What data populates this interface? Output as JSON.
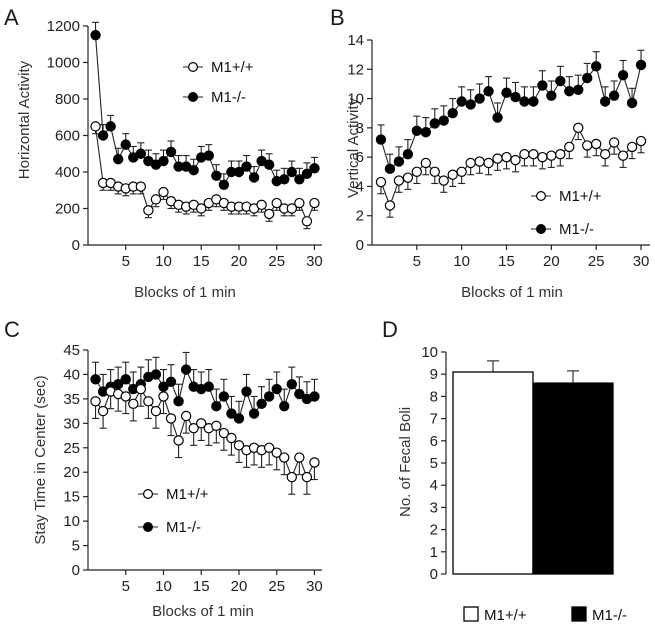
{
  "chart_data": [
    {
      "panel": "A",
      "type": "line",
      "xlabel": "Blocks of 1 min",
      "ylabel": "Horizontal Activity",
      "xlim": [
        0,
        31
      ],
      "ylim": [
        0,
        1200
      ],
      "xticks": [
        5,
        10,
        15,
        20,
        25,
        30
      ],
      "yticks": [
        0,
        200,
        400,
        600,
        800,
        1000,
        1200
      ],
      "legend": "top-right",
      "series": [
        {
          "name": "M1+/+",
          "marker": "open-circle",
          "x": [
            1,
            2,
            3,
            4,
            5,
            6,
            7,
            8,
            9,
            10,
            11,
            12,
            13,
            14,
            15,
            16,
            17,
            18,
            19,
            20,
            21,
            22,
            23,
            24,
            25,
            26,
            27,
            28,
            29,
            30
          ],
          "values": [
            650,
            340,
            340,
            320,
            310,
            320,
            320,
            190,
            250,
            290,
            240,
            220,
            210,
            220,
            200,
            230,
            250,
            230,
            210,
            210,
            210,
            200,
            220,
            170,
            230,
            200,
            200,
            230,
            130,
            230
          ],
          "err": [
            40,
            40,
            40,
            40,
            40,
            40,
            40,
            40,
            40,
            40,
            40,
            40,
            40,
            40,
            40,
            40,
            40,
            40,
            40,
            40,
            40,
            40,
            40,
            40,
            40,
            40,
            40,
            40,
            40,
            40
          ]
        },
        {
          "name": "M1-/-",
          "marker": "filled-circle",
          "x": [
            1,
            2,
            3,
            4,
            5,
            6,
            7,
            8,
            9,
            10,
            11,
            12,
            13,
            14,
            15,
            16,
            17,
            18,
            19,
            20,
            21,
            22,
            23,
            24,
            25,
            26,
            27,
            28,
            29,
            30
          ],
          "values": [
            1150,
            600,
            650,
            470,
            550,
            480,
            500,
            460,
            440,
            460,
            510,
            430,
            430,
            410,
            480,
            490,
            380,
            330,
            400,
            400,
            430,
            370,
            460,
            440,
            350,
            360,
            400,
            360,
            390,
            420
          ],
          "err": [
            70,
            60,
            60,
            60,
            60,
            60,
            60,
            60,
            60,
            60,
            60,
            60,
            60,
            60,
            60,
            60,
            60,
            60,
            60,
            60,
            60,
            60,
            60,
            60,
            60,
            60,
            60,
            60,
            60,
            60
          ]
        }
      ]
    },
    {
      "panel": "B",
      "type": "line",
      "xlabel": "Blocks of 1 min",
      "ylabel": "Vertical Activity",
      "xlim": [
        0,
        31
      ],
      "ylim": [
        0,
        14
      ],
      "xticks": [
        5,
        10,
        15,
        20,
        25,
        30
      ],
      "yticks": [
        0,
        2,
        4,
        6,
        8,
        10,
        12,
        14
      ],
      "legend": "bottom-right",
      "series": [
        {
          "name": "M1+/+",
          "marker": "open-circle",
          "x": [
            1,
            2,
            3,
            4,
            5,
            6,
            7,
            8,
            9,
            10,
            11,
            12,
            13,
            14,
            15,
            16,
            17,
            18,
            19,
            20,
            21,
            22,
            23,
            24,
            25,
            26,
            27,
            28,
            29,
            30
          ],
          "values": [
            4.3,
            2.7,
            4.4,
            4.6,
            5.0,
            5.6,
            5.0,
            4.4,
            4.8,
            5.0,
            5.6,
            5.7,
            5.6,
            5.9,
            6.0,
            5.8,
            6.2,
            6.2,
            6.0,
            6.1,
            6.2,
            6.7,
            8.0,
            6.8,
            6.9,
            6.2,
            7.0,
            6.1,
            6.7,
            7.1
          ],
          "err": [
            0.8,
            0.8,
            0.8,
            0.8,
            0.8,
            0.8,
            0.8,
            0.8,
            0.8,
            0.8,
            0.8,
            0.8,
            0.8,
            0.8,
            0.8,
            0.8,
            0.8,
            0.8,
            0.8,
            0.8,
            0.8,
            0.8,
            0.8,
            0.8,
            0.8,
            0.8,
            0.8,
            0.8,
            0.8,
            0.8
          ]
        },
        {
          "name": "M1-/-",
          "marker": "filled-circle",
          "x": [
            1,
            2,
            3,
            4,
            5,
            6,
            7,
            8,
            9,
            10,
            11,
            12,
            13,
            14,
            15,
            16,
            17,
            18,
            19,
            20,
            21,
            22,
            23,
            24,
            25,
            26,
            27,
            28,
            29,
            30
          ],
          "values": [
            7.2,
            5.2,
            5.7,
            6.2,
            7.8,
            7.7,
            8.3,
            8.5,
            9.0,
            9.8,
            9.6,
            10.0,
            10.5,
            8.7,
            10.4,
            10.1,
            9.8,
            9.8,
            10.9,
            10.2,
            11.2,
            10.5,
            10.6,
            11.4,
            12.2,
            9.8,
            10.2,
            11.6,
            9.7,
            12.3
          ],
          "err": [
            1.0,
            1.0,
            1.0,
            1.0,
            1.0,
            1.0,
            1.0,
            1.0,
            1.0,
            1.0,
            1.0,
            1.0,
            1.0,
            1.0,
            1.0,
            1.0,
            1.0,
            1.0,
            1.0,
            1.0,
            1.0,
            1.0,
            1.0,
            1.0,
            1.0,
            1.0,
            1.0,
            1.0,
            1.0,
            1.0
          ]
        }
      ]
    },
    {
      "panel": "C",
      "type": "line",
      "xlabel": "Blocks of 1 min",
      "ylabel": "Stay Time in Center (sec)",
      "xlim": [
        0,
        31
      ],
      "ylim": [
        0,
        45
      ],
      "xticks": [
        5,
        10,
        15,
        20,
        25,
        30
      ],
      "yticks": [
        0,
        5,
        10,
        15,
        20,
        25,
        30,
        35,
        40,
        45
      ],
      "legend": "bottom-left",
      "series": [
        {
          "name": "M1+/+",
          "marker": "open-circle",
          "x": [
            1,
            2,
            3,
            4,
            5,
            6,
            7,
            8,
            9,
            10,
            11,
            12,
            13,
            14,
            15,
            16,
            17,
            18,
            19,
            20,
            21,
            22,
            23,
            24,
            25,
            26,
            27,
            28,
            29,
            30
          ],
          "values": [
            34.5,
            32.5,
            36.5,
            36.0,
            35.5,
            34.0,
            37.0,
            34.5,
            32.5,
            35.5,
            31.0,
            26.5,
            31.5,
            29.0,
            30.0,
            29.0,
            29.5,
            28.0,
            27.0,
            25.5,
            24.5,
            25.0,
            24.5,
            25.0,
            24.0,
            23.0,
            19.0,
            23.0,
            19.0,
            22.0
          ],
          "err": [
            3.5,
            3.5,
            3.5,
            3.5,
            3.5,
            3.5,
            3.5,
            3.5,
            3.5,
            3.5,
            3.5,
            3.5,
            3.5,
            3.5,
            3.5,
            3.5,
            3.5,
            3.5,
            3.5,
            3.5,
            3.5,
            3.5,
            3.5,
            3.5,
            3.5,
            3.5,
            3.5,
            3.5,
            3.5,
            3.5
          ]
        },
        {
          "name": "M1-/-",
          "marker": "filled-circle",
          "x": [
            1,
            2,
            3,
            4,
            5,
            6,
            7,
            8,
            9,
            10,
            11,
            12,
            13,
            14,
            15,
            16,
            17,
            18,
            19,
            20,
            21,
            22,
            23,
            24,
            25,
            26,
            27,
            28,
            29,
            30
          ],
          "values": [
            39.0,
            36.5,
            37.5,
            38.0,
            39.0,
            37.0,
            38.0,
            39.5,
            40.0,
            37.5,
            38.5,
            34.5,
            41.0,
            37.5,
            37.0,
            37.5,
            33.5,
            35.5,
            32.0,
            31.0,
            36.5,
            32.0,
            34.0,
            35.5,
            37.0,
            33.5,
            38.0,
            36.0,
            35.0,
            35.5
          ],
          "err": [
            3.5,
            3.5,
            3.5,
            3.5,
            3.5,
            3.5,
            3.5,
            3.5,
            3.5,
            3.5,
            3.5,
            3.5,
            3.5,
            3.5,
            3.5,
            3.5,
            3.5,
            3.5,
            3.5,
            3.5,
            3.5,
            3.5,
            3.5,
            3.5,
            3.5,
            3.5,
            3.5,
            3.5,
            3.5,
            3.5
          ]
        }
      ]
    },
    {
      "panel": "D",
      "type": "bar",
      "ylabel": "No. of Fecal Boli",
      "ylim": [
        0,
        10
      ],
      "yticks": [
        0,
        1,
        2,
        3,
        4,
        5,
        6,
        7,
        8,
        9,
        10
      ],
      "categories": [
        "M1+/+",
        "M1-/-"
      ],
      "values": [
        9.1,
        8.6
      ],
      "err": [
        0.5,
        0.55
      ],
      "colors": [
        "#ffffff",
        "#000000"
      ],
      "legend": "bottom"
    }
  ]
}
